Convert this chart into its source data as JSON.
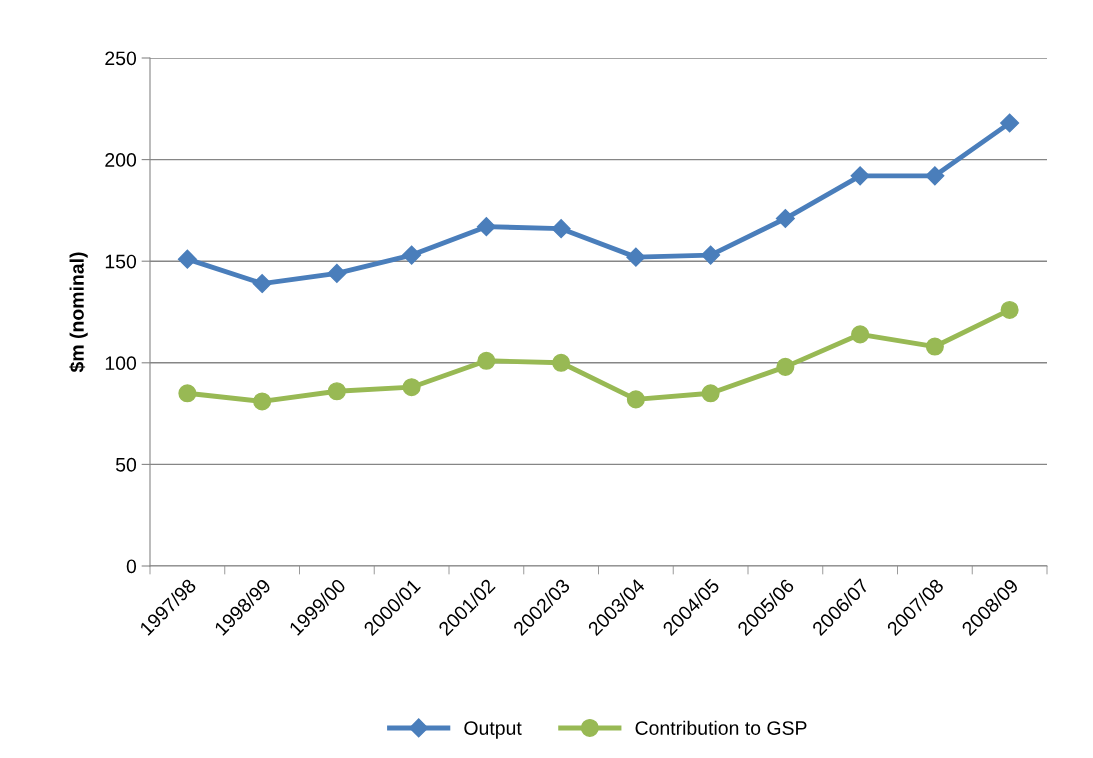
{
  "chart_data": {
    "type": "line",
    "ylabel": "$m (nominal)",
    "categories": [
      "1997/98",
      "1998/99",
      "1999/00",
      "2000/01",
      "2001/02",
      "2002/03",
      "2003/04",
      "2004/05",
      "2005/06",
      "2006/07",
      "2007/08",
      "2008/09"
    ],
    "series": [
      {
        "name": "Output",
        "color": "#4a7ebb",
        "marker": "diamond",
        "values": [
          151,
          139,
          144,
          153,
          167,
          166,
          152,
          153,
          171,
          192,
          192,
          218
        ]
      },
      {
        "name": "Contribution to GSP",
        "color": "#98b954",
        "marker": "circle",
        "values": [
          85,
          81,
          86,
          88,
          101,
          100,
          82,
          85,
          98,
          114,
          108,
          126
        ]
      }
    ],
    "ylim": [
      0,
      250
    ],
    "yticks": [
      0,
      50,
      100,
      150,
      200,
      250
    ],
    "grid": "y",
    "legend": "bottom",
    "line_style": "solid"
  }
}
